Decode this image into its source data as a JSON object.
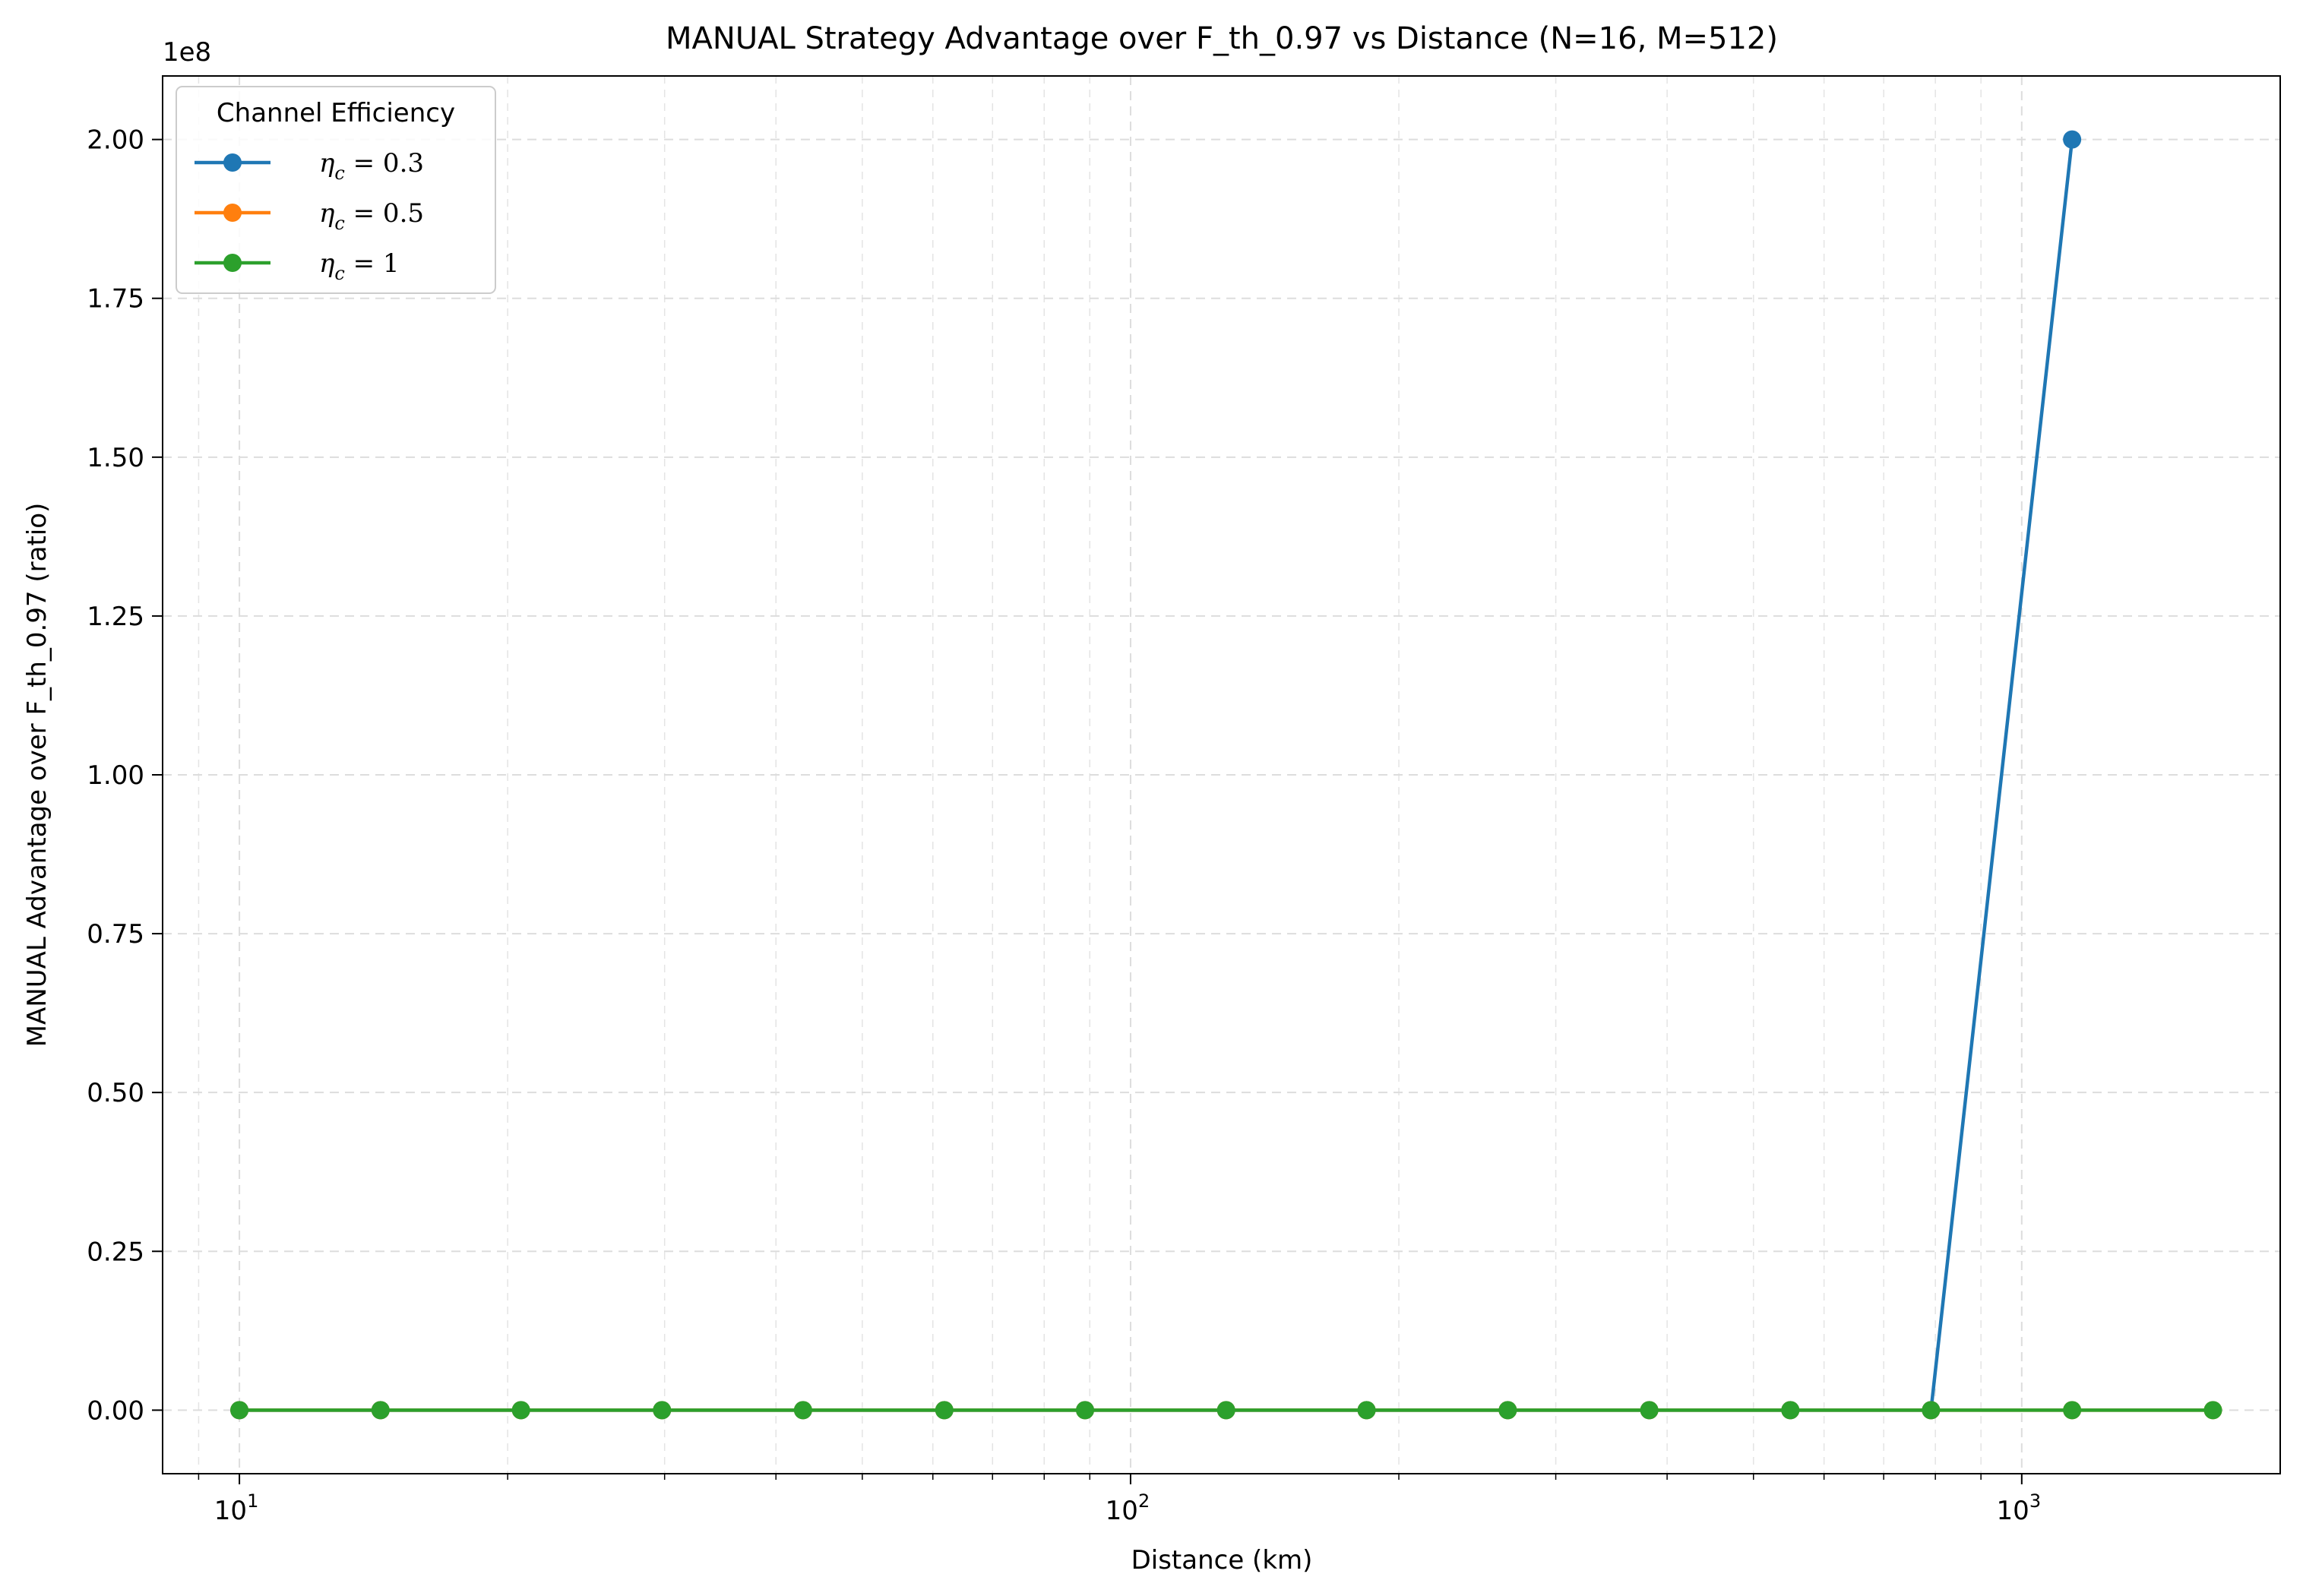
{
  "chart_data": {
    "type": "line",
    "title": "MANUAL Strategy Advantage over F_th_0.97 vs Distance (N=16, M=512)",
    "xlabel": "Distance (km)",
    "ylabel": "MANUAL Advantage over F_th_0.97 (ratio)",
    "xscale": "log",
    "xlim": [
      8.2,
      1950
    ],
    "ylim": [
      -0.1,
      2.1
    ],
    "y_offset_label": "1e8",
    "x_ticks": [
      {
        "value": 10,
        "base": "10",
        "exp": "1"
      },
      {
        "value": 100,
        "base": "10",
        "exp": "2"
      },
      {
        "value": 1000,
        "base": "10",
        "exp": "3"
      }
    ],
    "y_ticks": [
      {
        "value": 0.0,
        "label": "0.00"
      },
      {
        "value": 0.25,
        "label": "0.25"
      },
      {
        "value": 0.5,
        "label": "0.50"
      },
      {
        "value": 0.75,
        "label": "0.75"
      },
      {
        "value": 1.0,
        "label": "1.00"
      },
      {
        "value": 1.25,
        "label": "1.25"
      },
      {
        "value": 1.5,
        "label": "1.50"
      },
      {
        "value": 1.75,
        "label": "1.75"
      },
      {
        "value": 2.0,
        "label": "2.00"
      }
    ],
    "grid": true,
    "legend": {
      "title": "Channel Efficiency",
      "placement": "top-left"
    },
    "x": [
      10,
      14.4,
      20.7,
      29.8,
      42.9,
      61.8,
      88.9,
      128,
      184,
      265,
      382,
      550,
      791,
      1139,
      1639
    ],
    "series": [
      {
        "name": "η_c = 0.3",
        "color": "#1f77b4",
        "x": [
          10,
          14.4,
          20.7,
          29.8,
          42.9,
          61.8,
          88.9,
          128,
          184,
          265,
          382,
          550,
          791,
          1139
        ],
        "values": [
          0,
          0,
          0,
          0,
          0,
          0,
          0,
          0,
          0,
          0,
          0,
          0,
          0,
          2.0
        ]
      },
      {
        "name": "η_c = 0.5",
        "color": "#ff7f0e",
        "x": [
          10,
          14.4,
          20.7,
          29.8,
          42.9,
          61.8,
          88.9,
          128,
          184,
          265,
          382,
          550,
          791,
          1139,
          1639
        ],
        "values": [
          0,
          0,
          0,
          0,
          0,
          0,
          0,
          0,
          0,
          0,
          0,
          0,
          0,
          0,
          0
        ]
      },
      {
        "name": "η_c = 1",
        "color": "#2ca02c",
        "x": [
          10,
          14.4,
          20.7,
          29.8,
          42.9,
          61.8,
          88.9,
          128,
          184,
          265,
          382,
          550,
          791,
          1139,
          1639
        ],
        "values": [
          0,
          0,
          0,
          0,
          0,
          0,
          0,
          0,
          0,
          0,
          0,
          0,
          0,
          0,
          0
        ]
      }
    ],
    "legend_entries": [
      {
        "symbol": "η",
        "sub": "c",
        "rest": " = 0.3",
        "color": "#1f77b4"
      },
      {
        "symbol": "η",
        "sub": "c",
        "rest": " = 0.5",
        "color": "#ff7f0e"
      },
      {
        "symbol": "η",
        "sub": "c",
        "rest": " = 1",
        "color": "#2ca02c"
      }
    ]
  }
}
